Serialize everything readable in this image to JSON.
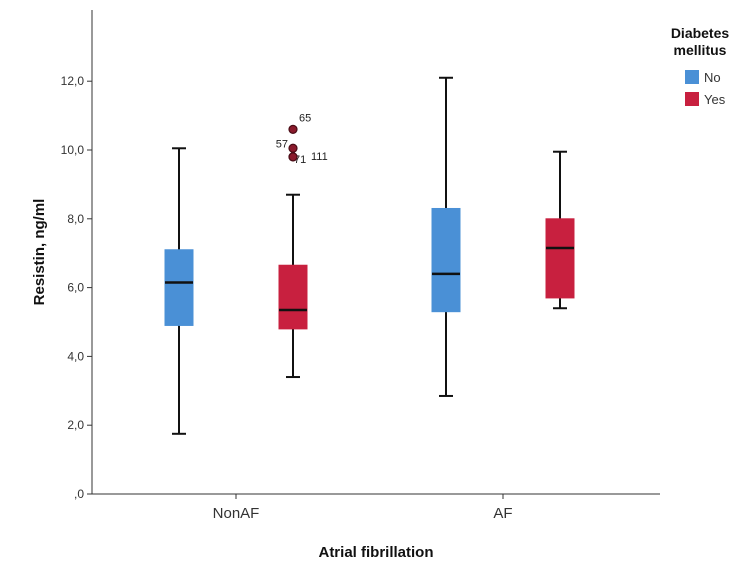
{
  "chart_data": {
    "type": "boxplot",
    "xlabel": "Atrial fibrillation",
    "ylabel": "Resistin, ng/ml",
    "ylim": [
      0,
      14
    ],
    "yticks": [
      0,
      2,
      4,
      6,
      8,
      10,
      12
    ],
    "ytick_labels": [
      ",0",
      "2,0",
      "4,0",
      "6,0",
      "8,0",
      "10,0",
      "12,0"
    ],
    "grid": false,
    "legend": {
      "title_line1": "Diabetes",
      "title_line2": "mellitus",
      "placement": "top-right"
    },
    "categories": [
      "NonAF",
      "AF"
    ],
    "series": [
      {
        "name": "No",
        "color": "#4a90d6",
        "boxes": [
          {
            "category": "NonAF",
            "min": 1.75,
            "q1": 4.9,
            "median": 6.15,
            "q3": 7.1,
            "max": 10.05,
            "outliers": []
          },
          {
            "category": "AF",
            "min": 2.85,
            "q1": 5.3,
            "median": 6.4,
            "q3": 8.3,
            "max": 12.1,
            "outliers": []
          }
        ]
      },
      {
        "name": "Yes",
        "color": "#c8203f",
        "boxes": [
          {
            "category": "NonAF",
            "min": 3.4,
            "q1": 4.8,
            "median": 5.35,
            "q3": 6.65,
            "max": 8.7,
            "outliers": [
              {
                "value": 10.6,
                "label": "65"
              },
              {
                "value": 10.05,
                "label": "57"
              },
              {
                "value": 9.8,
                "label": "71"
              },
              {
                "value": 9.8,
                "label": "111"
              }
            ]
          },
          {
            "category": "AF",
            "min": 5.4,
            "q1": 5.7,
            "median": 7.15,
            "q3": 8.0,
            "max": 9.95,
            "outliers": []
          }
        ]
      }
    ]
  }
}
